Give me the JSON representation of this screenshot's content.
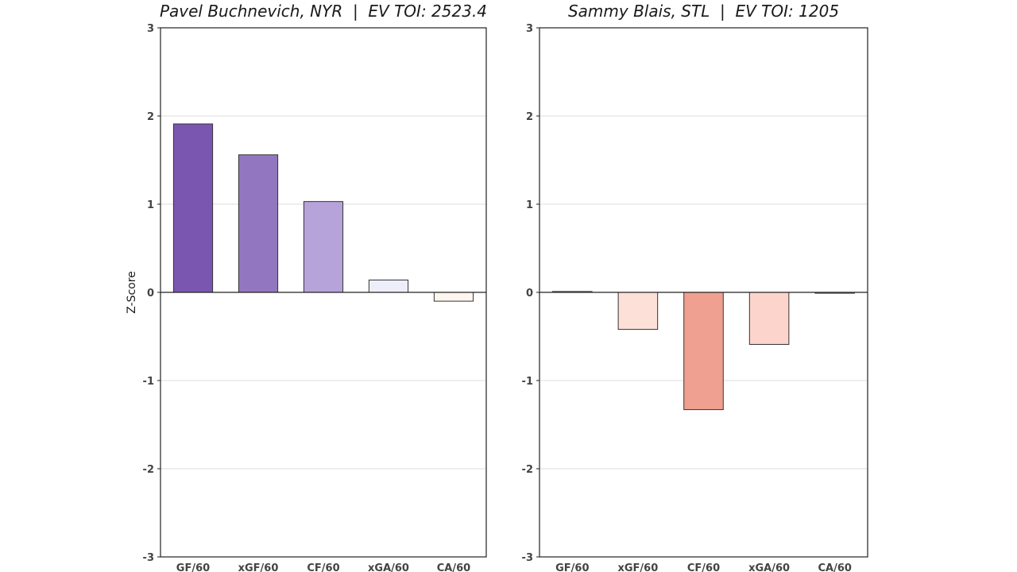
{
  "chart_data": [
    {
      "type": "bar",
      "title": "Pavel Buchnevich, NYR  |  EV TOI: 2523.4",
      "xlabel": "",
      "ylabel": "Z-Score",
      "categories": [
        "GF/60",
        "xGF/60",
        "CF/60",
        "xGA/60",
        "CA/60"
      ],
      "values": [
        1.91,
        1.56,
        1.03,
        0.14,
        -0.1
      ],
      "colors": [
        "#7b56b0",
        "#9277c0",
        "#b6a3d9",
        "#eeeefa",
        "#fdf5ee"
      ],
      "ylim": [
        -3,
        3
      ],
      "yticks": [
        "-3",
        "-2",
        "-1",
        "0",
        "1",
        "2",
        "3"
      ],
      "grid": true
    },
    {
      "type": "bar",
      "title": "Sammy Blais, STL  |  EV TOI: 1205",
      "xlabel": "",
      "ylabel": "",
      "categories": [
        "GF/60",
        "xGF/60",
        "CF/60",
        "xGA/60",
        "CA/60"
      ],
      "values": [
        0.01,
        -0.42,
        -1.33,
        -0.59,
        -0.01
      ],
      "colors": [
        "#fff0ec",
        "#fde0d8",
        "#f0a090",
        "#fcd4cc",
        "#fff0ec"
      ],
      "ylim": [
        -3,
        3
      ],
      "yticks": [
        "-3",
        "-2",
        "-1",
        "0",
        "1",
        "2",
        "3"
      ],
      "grid": true
    }
  ]
}
